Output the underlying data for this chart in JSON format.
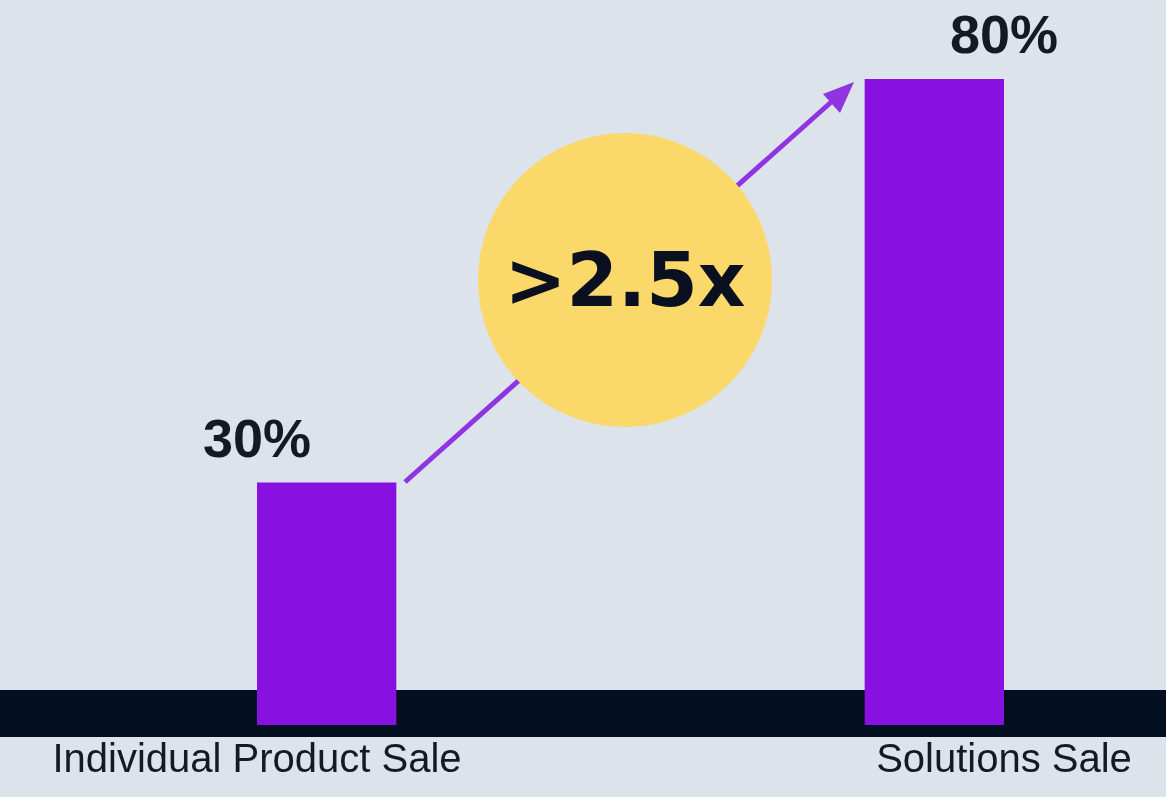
{
  "chart_data": {
    "type": "bar",
    "categories": [
      "Individual Product Sale",
      "Solutions Sale"
    ],
    "values": [
      30,
      80
    ],
    "colors": [
      "#8810e0",
      "#8810e0"
    ],
    "value_labels": [
      "30%",
      "80%"
    ],
    "annotations": [
      ">2.5x"
    ],
    "grid": false,
    "legend": false
  }
}
